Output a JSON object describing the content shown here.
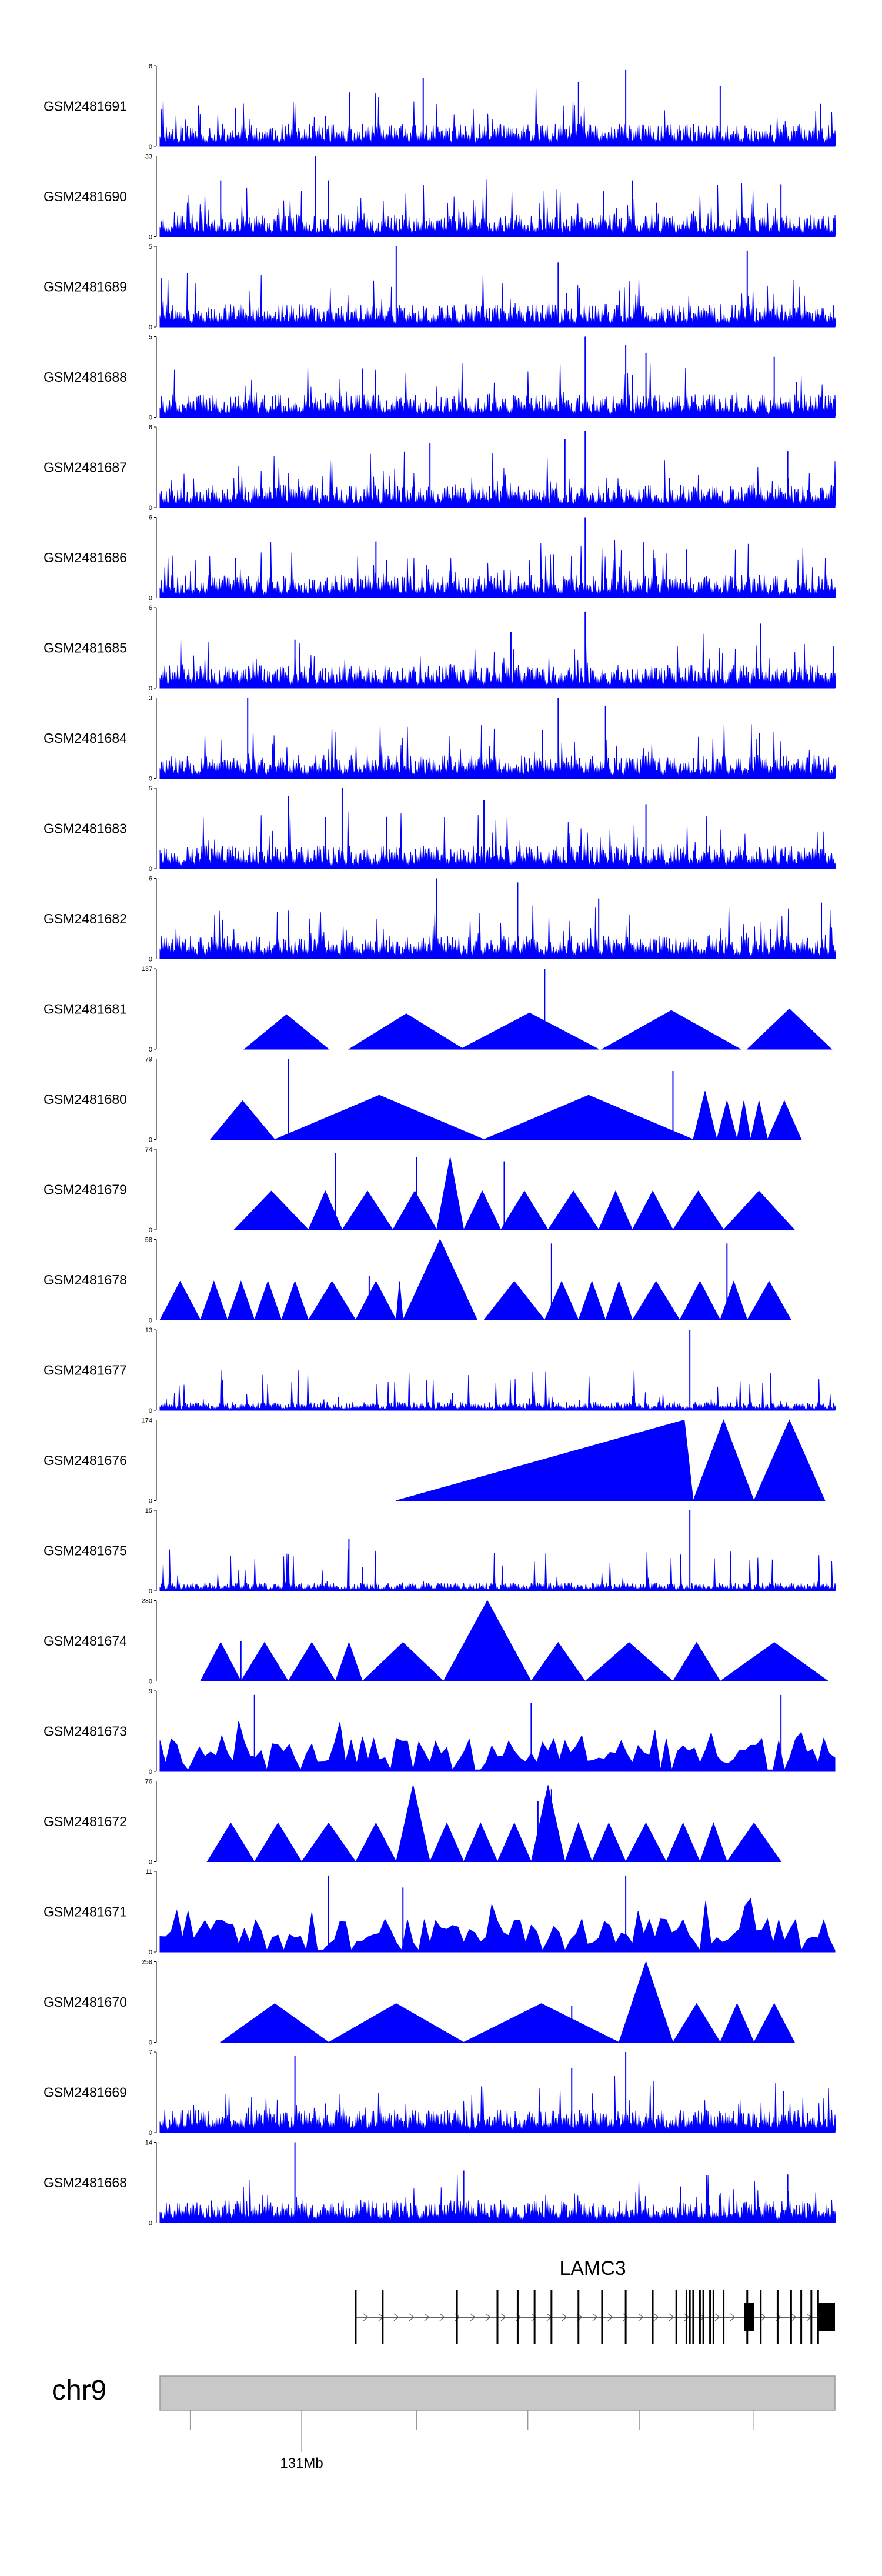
{
  "chart_data": {
    "type": "area",
    "title": "",
    "chromosome": "chr9",
    "gene": "LAMC3",
    "genome_axis_label": "131Mb",
    "fill_color": "#0000ff",
    "tracks": [
      {
        "name": "GSM2481691",
        "ymin": 0,
        "ymax": 6,
        "style": "dense",
        "seed": 11,
        "spikes": [
          [
            0.69,
            0.95
          ],
          [
            0.39,
            0.85
          ],
          [
            0.62,
            0.8
          ],
          [
            0.83,
            0.75
          ]
        ]
      },
      {
        "name": "GSM2481690",
        "ymin": 0,
        "ymax": 33,
        "style": "sparse",
        "seed": 23,
        "spikes": [
          [
            0.23,
            1.0
          ],
          [
            0.09,
            0.7
          ],
          [
            0.7,
            0.7
          ],
          [
            0.92,
            0.65
          ],
          [
            0.25,
            0.7
          ]
        ]
      },
      {
        "name": "GSM2481689",
        "ymin": 0,
        "ymax": 5,
        "style": "dense",
        "seed": 31,
        "spikes": [
          [
            0.35,
            1.0
          ],
          [
            0.87,
            0.95
          ],
          [
            0.59,
            0.8
          ]
        ]
      },
      {
        "name": "GSM2481688",
        "ymin": 0,
        "ymax": 5,
        "style": "dense",
        "seed": 41,
        "spikes": [
          [
            0.63,
            1.0
          ],
          [
            0.69,
            0.9
          ],
          [
            0.91,
            0.75
          ],
          [
            0.72,
            0.8
          ]
        ]
      },
      {
        "name": "GSM2481687",
        "ymin": 0,
        "ymax": 6,
        "style": "dense",
        "seed": 53,
        "spikes": [
          [
            0.63,
            0.95
          ],
          [
            0.4,
            0.8
          ],
          [
            0.93,
            0.7
          ],
          [
            0.6,
            0.85
          ]
        ]
      },
      {
        "name": "GSM2481686",
        "ymin": 0,
        "ymax": 6,
        "style": "dense",
        "seed": 67,
        "spikes": [
          [
            0.63,
            1.0
          ],
          [
            0.32,
            0.7
          ],
          [
            0.78,
            0.6
          ]
        ]
      },
      {
        "name": "GSM2481685",
        "ymin": 0,
        "ymax": 6,
        "style": "dense",
        "seed": 71,
        "spikes": [
          [
            0.63,
            0.95
          ],
          [
            0.89,
            0.8
          ],
          [
            0.52,
            0.7
          ],
          [
            0.2,
            0.6
          ]
        ]
      },
      {
        "name": "GSM2481684",
        "ymin": 0,
        "ymax": 3,
        "style": "dense",
        "seed": 83,
        "spikes": [
          [
            0.13,
            1.0
          ],
          [
            0.59,
            1.0
          ],
          [
            0.66,
            0.9
          ]
        ]
      },
      {
        "name": "GSM2481683",
        "ymin": 0,
        "ymax": 5,
        "style": "dense",
        "seed": 97,
        "spikes": [
          [
            0.27,
            1.0
          ],
          [
            0.19,
            0.9
          ],
          [
            0.48,
            0.85
          ],
          [
            0.72,
            0.8
          ]
        ]
      },
      {
        "name": "GSM2481682",
        "ymin": 0,
        "ymax": 6,
        "style": "dense",
        "seed": 101,
        "spikes": [
          [
            0.41,
            1.0
          ],
          [
            0.53,
            0.95
          ],
          [
            0.65,
            0.75
          ],
          [
            0.98,
            0.7
          ]
        ]
      },
      {
        "name": "GSM2481681",
        "ymin": 0,
        "ymax": 137,
        "style": "blocks",
        "blocks": [
          [
            0.125,
            0.25,
            0.43
          ],
          [
            0.28,
            0.45,
            0.44
          ],
          [
            0.445,
            0.65,
            0.45
          ],
          [
            0.655,
            0.86,
            0.48
          ],
          [
            0.87,
            0.995,
            0.5
          ]
        ],
        "spikes": [
          [
            0.57,
            1.0
          ]
        ]
      },
      {
        "name": "GSM2481680",
        "ymin": 0,
        "ymax": 79,
        "style": "blocks",
        "blocks": [
          [
            0.075,
            0.17,
            0.48
          ],
          [
            0.17,
            0.48,
            0.55
          ],
          [
            0.48,
            0.79,
            0.55
          ],
          [
            0.79,
            0.825,
            0.6
          ],
          [
            0.825,
            0.855,
            0.48
          ],
          [
            0.855,
            0.875,
            0.48
          ],
          [
            0.875,
            0.9,
            0.48
          ],
          [
            0.9,
            0.95,
            0.48
          ]
        ],
        "spikes": [
          [
            0.19,
            1.0
          ],
          [
            0.76,
            0.85
          ],
          [
            0.805,
            0.45
          ]
        ]
      },
      {
        "name": "GSM2481679",
        "ymin": 0,
        "ymax": 74,
        "style": "blocks",
        "blocks": [
          [
            0.11,
            0.22,
            0.48
          ],
          [
            0.22,
            0.27,
            0.48
          ],
          [
            0.27,
            0.345,
            0.48
          ],
          [
            0.345,
            0.41,
            0.48
          ],
          [
            0.41,
            0.45,
            0.9
          ],
          [
            0.45,
            0.505,
            0.48
          ],
          [
            0.505,
            0.575,
            0.48
          ],
          [
            0.575,
            0.65,
            0.48
          ],
          [
            0.65,
            0.7,
            0.48
          ],
          [
            0.7,
            0.76,
            0.48
          ],
          [
            0.76,
            0.835,
            0.48
          ],
          [
            0.835,
            0.94,
            0.48
          ]
        ],
        "spikes": [
          [
            0.38,
            0.9
          ],
          [
            0.26,
            0.95
          ],
          [
            0.51,
            0.85
          ]
        ]
      },
      {
        "name": "GSM2481678",
        "ymin": 0,
        "ymax": 58,
        "style": "blocks",
        "blocks": [
          [
            0.0,
            0.06,
            0.48
          ],
          [
            0.06,
            0.1,
            0.48
          ],
          [
            0.1,
            0.14,
            0.48
          ],
          [
            0.14,
            0.18,
            0.48
          ],
          [
            0.18,
            0.22,
            0.48
          ],
          [
            0.22,
            0.29,
            0.48
          ],
          [
            0.29,
            0.35,
            0.48
          ],
          [
            0.35,
            0.36,
            0.48
          ],
          [
            0.36,
            0.47,
            1.0
          ],
          [
            0.48,
            0.57,
            0.48
          ],
          [
            0.57,
            0.62,
            0.48
          ],
          [
            0.62,
            0.66,
            0.48
          ],
          [
            0.66,
            0.7,
            0.48
          ],
          [
            0.7,
            0.77,
            0.48
          ],
          [
            0.77,
            0.83,
            0.48
          ],
          [
            0.83,
            0.87,
            0.48
          ],
          [
            0.87,
            0.935,
            0.48
          ]
        ],
        "spikes": [
          [
            0.58,
            0.95
          ],
          [
            0.84,
            0.95
          ],
          [
            0.31,
            0.55
          ]
        ]
      },
      {
        "name": "GSM2481677",
        "ymin": 0,
        "ymax": 13,
        "style": "lowdense",
        "seed": 131,
        "spikes": [
          [
            0.785,
            1.0
          ]
        ]
      },
      {
        "name": "GSM2481676",
        "ymin": 0,
        "ymax": 174,
        "style": "blocks",
        "blocks": [
          [
            0.35,
            0.79,
            1.0
          ],
          [
            0.79,
            0.88,
            1.0
          ],
          [
            0.88,
            0.985,
            1.0
          ]
        ],
        "spikes": []
      },
      {
        "name": "GSM2481675",
        "ymin": 0,
        "ymax": 15,
        "style": "lowdense",
        "seed": 149,
        "spikes": [
          [
            0.785,
            1.0
          ],
          [
            0.28,
            0.65
          ]
        ]
      },
      {
        "name": "GSM2481674",
        "ymin": 0,
        "ymax": 230,
        "style": "blocks",
        "blocks": [
          [
            0.06,
            0.12,
            0.48
          ],
          [
            0.12,
            0.19,
            0.48
          ],
          [
            0.19,
            0.26,
            0.48
          ],
          [
            0.26,
            0.3,
            0.48
          ],
          [
            0.3,
            0.42,
            0.48
          ],
          [
            0.42,
            0.55,
            1.0
          ],
          [
            0.55,
            0.63,
            0.48
          ],
          [
            0.63,
            0.76,
            0.48
          ],
          [
            0.76,
            0.83,
            0.48
          ],
          [
            0.83,
            0.99,
            0.48
          ]
        ],
        "spikes": [
          [
            0.12,
            0.5
          ]
        ]
      },
      {
        "name": "GSM2481673",
        "ymin": 0,
        "ymax": 9,
        "style": "blockdense",
        "seed": 163,
        "spikes": [
          [
            0.14,
            0.95
          ],
          [
            0.92,
            0.95
          ],
          [
            0.55,
            0.85
          ]
        ]
      },
      {
        "name": "GSM2481672",
        "ymin": 0,
        "ymax": 76,
        "style": "blocks",
        "blocks": [
          [
            0.07,
            0.14,
            0.48
          ],
          [
            0.14,
            0.21,
            0.48
          ],
          [
            0.21,
            0.29,
            0.48
          ],
          [
            0.29,
            0.35,
            0.48
          ],
          [
            0.35,
            0.4,
            0.95
          ],
          [
            0.4,
            0.45,
            0.48
          ],
          [
            0.45,
            0.5,
            0.48
          ],
          [
            0.5,
            0.55,
            0.48
          ],
          [
            0.55,
            0.6,
            0.95
          ],
          [
            0.6,
            0.64,
            0.48
          ],
          [
            0.64,
            0.69,
            0.48
          ],
          [
            0.69,
            0.75,
            0.48
          ],
          [
            0.75,
            0.8,
            0.48
          ],
          [
            0.8,
            0.84,
            0.48
          ],
          [
            0.84,
            0.92,
            0.48
          ]
        ],
        "spikes": [
          [
            0.58,
            0.9
          ],
          [
            0.56,
            0.75
          ]
        ]
      },
      {
        "name": "GSM2481671",
        "ymin": 0,
        "ymax": 11,
        "style": "blockdense",
        "seed": 179,
        "spikes": [
          [
            0.25,
            0.95
          ],
          [
            0.69,
            0.95
          ],
          [
            0.36,
            0.8
          ]
        ]
      },
      {
        "name": "GSM2481670",
        "ymin": 0,
        "ymax": 258,
        "style": "blocks",
        "blocks": [
          [
            0.09,
            0.25,
            0.48
          ],
          [
            0.25,
            0.45,
            0.48
          ],
          [
            0.45,
            0.68,
            0.48
          ],
          [
            0.68,
            0.76,
            1.0
          ],
          [
            0.76,
            0.83,
            0.48
          ],
          [
            0.83,
            0.88,
            0.48
          ],
          [
            0.88,
            0.94,
            0.48
          ]
        ],
        "spikes": [
          [
            0.61,
            0.45
          ]
        ]
      },
      {
        "name": "GSM2481669",
        "ymin": 0,
        "ymax": 7,
        "style": "dense",
        "seed": 199,
        "spikes": [
          [
            0.69,
            1.0
          ],
          [
            0.2,
            0.95
          ],
          [
            0.61,
            0.8
          ]
        ]
      },
      {
        "name": "GSM2481668",
        "ymin": 0,
        "ymax": 14,
        "style": "dense",
        "seed": 211,
        "spikes": [
          [
            0.2,
            1.0
          ],
          [
            0.45,
            0.65
          ],
          [
            0.93,
            0.6
          ]
        ]
      }
    ],
    "gene_model": {
      "name": "LAMC3",
      "strand": "+",
      "start": 0.29,
      "end": 1.0,
      "exons": [
        0.29,
        0.33,
        0.44,
        0.5,
        0.53,
        0.555,
        0.58,
        0.62,
        0.655,
        0.69,
        0.73,
        0.765,
        0.78,
        0.785,
        0.79,
        0.8,
        0.805,
        0.815,
        0.82,
        0.835,
        0.87,
        0.89,
        0.915,
        0.935,
        0.95,
        0.965,
        0.975
      ],
      "thick_exons": [
        [
          0.865,
          0.88
        ],
        [
          0.975,
          1.0
        ]
      ]
    },
    "genome_axis": {
      "ticks": [
        0.045,
        0.21,
        0.38,
        0.545,
        0.71,
        0.88
      ],
      "labeled_tick": 0.21,
      "label": "131Mb"
    }
  }
}
